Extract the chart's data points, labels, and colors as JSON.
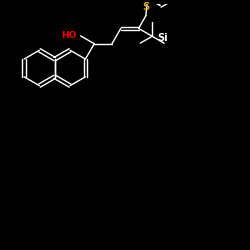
{
  "background_color": "#000000",
  "bond_color": "#ffffff",
  "atom_S_color": "#DAA520",
  "atom_O_color": "#FF0000",
  "atom_Si_color": "#ffffff",
  "figsize": [
    2.5,
    2.5
  ],
  "dpi": 100,
  "label_HO": "HO",
  "label_S": "S",
  "label_Si": "Si",
  "bond_lw": 1.0
}
